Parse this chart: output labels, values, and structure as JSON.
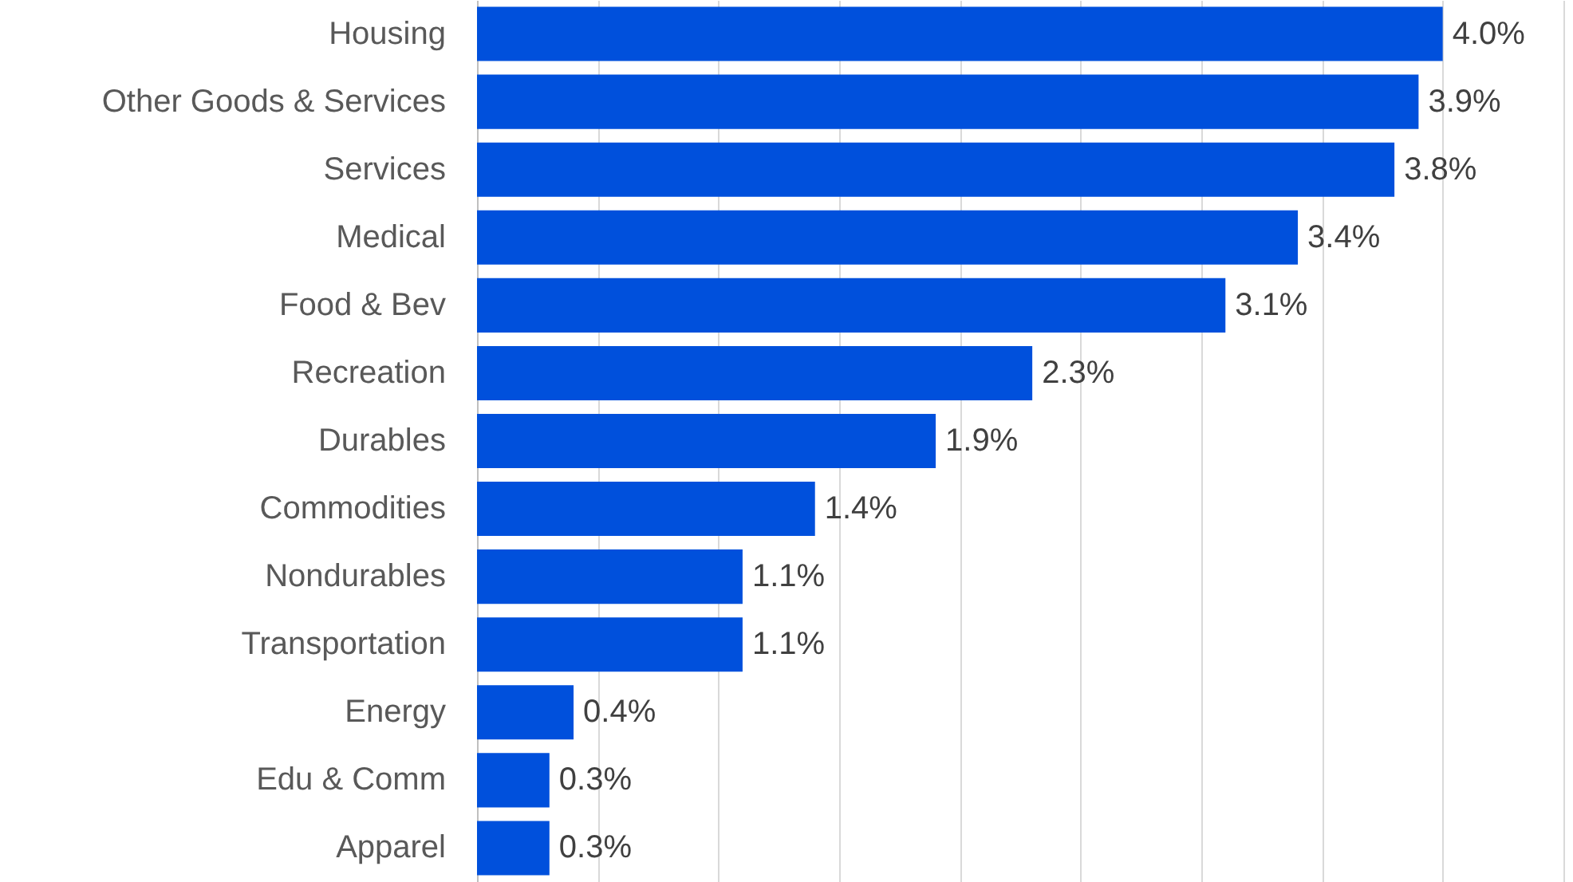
{
  "chart_data": {
    "type": "bar",
    "orientation": "horizontal",
    "categories": [
      "Housing",
      "Other Goods & Services",
      "Services",
      "Medical",
      "Food & Bev",
      "Recreation",
      "Durables",
      "Commodities",
      "Nondurables",
      "Transportation",
      "Energy",
      "Edu & Comm",
      "Apparel"
    ],
    "values": [
      4.0,
      3.9,
      3.8,
      3.4,
      3.1,
      2.3,
      1.9,
      1.4,
      1.1,
      1.1,
      0.4,
      0.3,
      0.3
    ],
    "value_labels": [
      "4.0%",
      "3.9%",
      "3.8%",
      "3.4%",
      "3.1%",
      "2.3%",
      "1.9%",
      "1.4%",
      "1.1%",
      "1.1%",
      "0.4%",
      "0.3%",
      "0.3%"
    ],
    "color": "#0050dc",
    "xlim": [
      0,
      4.5
    ],
    "xticks": [
      0,
      0.5,
      1,
      1.5,
      2,
      2.5,
      3,
      3.5,
      4,
      4.5
    ],
    "grid": "x",
    "tick_labels": "y"
  }
}
